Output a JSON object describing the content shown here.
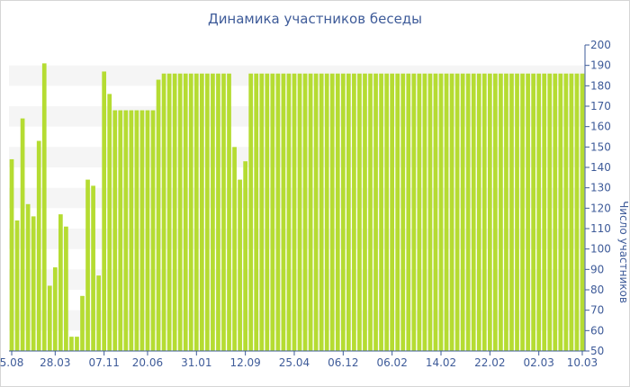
{
  "chart_data": {
    "type": "bar",
    "title": "Динамика участников беседы",
    "ylabel": "Число участников",
    "xlabel": "",
    "ylim": [
      50,
      200
    ],
    "yticks": [
      50,
      60,
      70,
      80,
      90,
      100,
      110,
      120,
      130,
      140,
      150,
      160,
      170,
      180,
      190,
      200
    ],
    "y_axis_side": "right",
    "grid": "horizontal alternating bands",
    "bar_color": "#b5dc32",
    "x_tick_labels": [
      "5.08",
      "28.03",
      "07.11",
      "20.06",
      "31.01",
      "12.09",
      "25.04",
      "06.12",
      "06.02",
      "14.02",
      "22.02",
      "02.03",
      "10.03"
    ],
    "x_tick_bar_index": [
      0,
      8,
      17,
      25,
      34,
      43,
      52,
      61,
      70,
      79,
      88,
      97,
      105
    ],
    "values": [
      144,
      114,
      164,
      122,
      116,
      153,
      191,
      82,
      91,
      117,
      111,
      57,
      57,
      77,
      134,
      131,
      87,
      187,
      176,
      168,
      168,
      168,
      168,
      168,
      168,
      168,
      168,
      183,
      186,
      186,
      186,
      186,
      186,
      186,
      186,
      186,
      186,
      186,
      186,
      186,
      186,
      150,
      134,
      143,
      186,
      186,
      186,
      186,
      186,
      186,
      186,
      186,
      186,
      186,
      186,
      186,
      186,
      186,
      186,
      186,
      186,
      186,
      186,
      186,
      186,
      186,
      186,
      186,
      186,
      186,
      186,
      186,
      186,
      186,
      186,
      186,
      186,
      186,
      186,
      186,
      186,
      186,
      186,
      186,
      186,
      186,
      186,
      186,
      186,
      186,
      186,
      186,
      186,
      186,
      186,
      186,
      186,
      186,
      186,
      186,
      186,
      186,
      186,
      186,
      186,
      186
    ]
  }
}
